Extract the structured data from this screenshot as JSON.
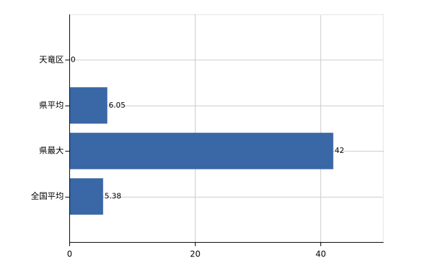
{
  "chart_data": {
    "type": "bar",
    "orientation": "horizontal",
    "categories": [
      "天竜区",
      "県平均",
      "県最大",
      "全国平均"
    ],
    "values": [
      0,
      6.05,
      42,
      5.38
    ],
    "color": "#3a68a6",
    "xlim": [
      0,
      50
    ],
    "xticks": [
      0,
      20,
      40
    ],
    "grid": true
  }
}
